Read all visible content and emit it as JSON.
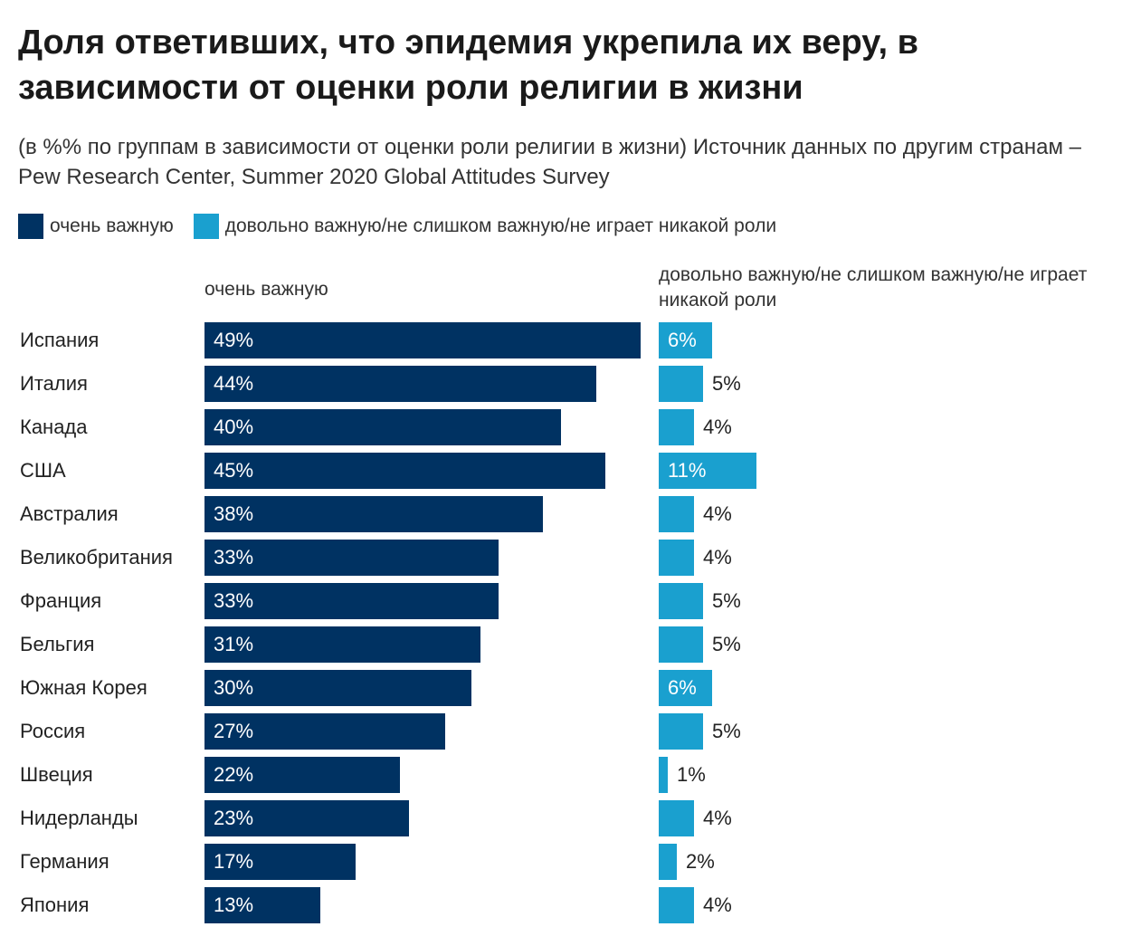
{
  "chart_data": {
    "type": "bar",
    "orientation": "horizontal",
    "title": "Доля ответивших, что эпидемия укрепила их веру, в зависимости от оценки роли религии в жизни",
    "subtitle": "(в %% по группам в зависимости от оценки роли религии в жизни) Источник данных по другим странам – Pew Research Center, Summer 2020 Global Attitudes Survey",
    "legend": [
      {
        "label": "очень важную",
        "color": "#003262"
      },
      {
        "label": "довольно важную/не слишком важную/не играет никакой роли",
        "color": "#1aa0cf"
      }
    ],
    "categories": [
      "Испания",
      "Италия",
      "Канада",
      "США",
      "Австралия",
      "Великобритания",
      "Франция",
      "Бельгия",
      "Южная Корея",
      "Россия",
      "Швеция",
      "Нидерланды",
      "Германия",
      "Япония"
    ],
    "series": [
      {
        "name": "очень важную",
        "header": "очень важную",
        "color": "#003262",
        "values": [
          49,
          44,
          40,
          45,
          38,
          33,
          33,
          31,
          30,
          27,
          22,
          23,
          17,
          13
        ]
      },
      {
        "name": "довольно важную/не слишком важную/не играет никакой роли",
        "header": "довольно важную/не слишком важную/не играет никакой роли",
        "color": "#1aa0cf",
        "values": [
          6,
          5,
          4,
          11,
          4,
          4,
          5,
          5,
          6,
          5,
          1,
          4,
          2,
          4
        ]
      }
    ],
    "value_suffix": "%"
  }
}
